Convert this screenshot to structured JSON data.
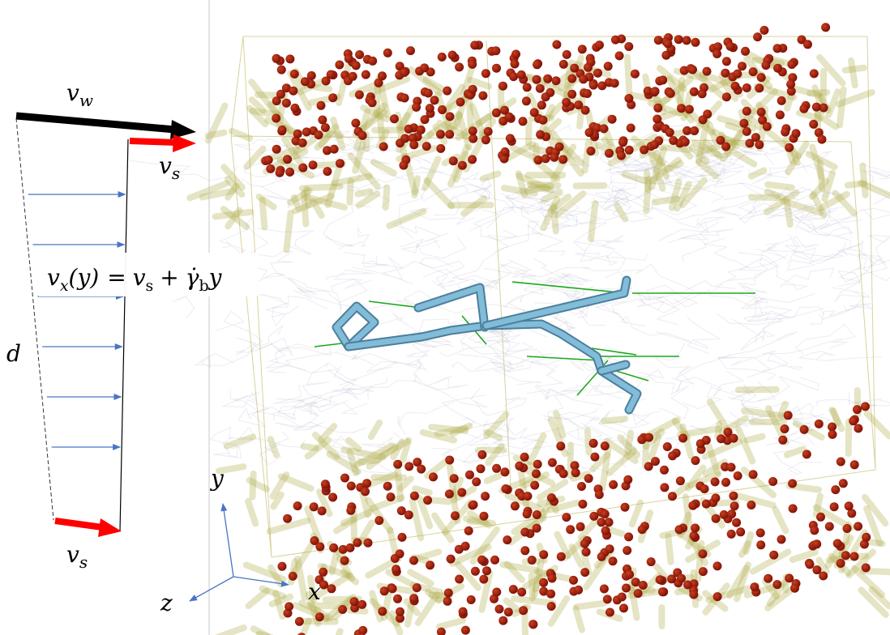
{
  "left_panel": {
    "wall_velocity": {
      "symbol": "v",
      "subscript": "w"
    },
    "top_slip_velocity": {
      "symbol": "v",
      "subscript": "s"
    },
    "bottom_slip_velocity": {
      "symbol": "v",
      "subscript": "s"
    },
    "gap": "d",
    "equation": {
      "v": "v",
      "v_sub": "x",
      "arg": "(y)",
      "eq": "=",
      "vs": "v",
      "vs_sub": "s",
      "plus": "+",
      "rate": "γ̇",
      "rate_sub": "b",
      "y": "y"
    }
  },
  "axes": {
    "y": "y",
    "x": "x",
    "z": "z"
  }
}
